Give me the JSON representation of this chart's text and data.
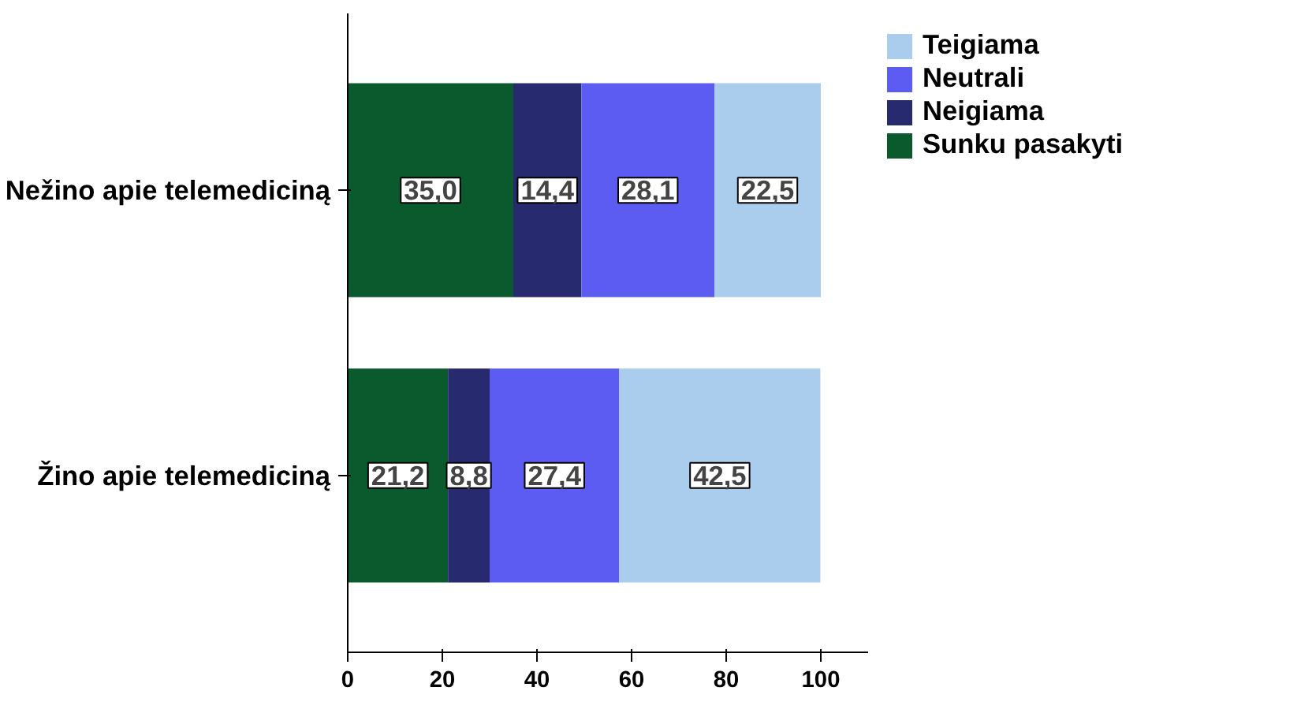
{
  "chart_data": {
    "type": "bar",
    "orientation": "horizontal",
    "stacked": true,
    "categories": [
      "Nežino apie telemediciną",
      "Žino apie telemediciną"
    ],
    "series": [
      {
        "name": "Sunku pasakyti",
        "color": "#0b5a2e",
        "values": [
          35.0,
          21.2
        ],
        "value_labels": [
          "35,0",
          "21,2"
        ]
      },
      {
        "name": "Neigiama",
        "color": "#272a6e",
        "values": [
          14.4,
          8.8
        ],
        "value_labels": [
          "14,4",
          "8,8"
        ]
      },
      {
        "name": "Neutrali",
        "color": "#5c5cf2",
        "values": [
          28.1,
          27.4
        ],
        "value_labels": [
          "28,1",
          "27,4"
        ]
      },
      {
        "name": "Teigiama",
        "color": "#aacdee",
        "values": [
          22.5,
          42.5
        ],
        "value_labels": [
          "22,5",
          "42,5"
        ]
      }
    ],
    "xlim": [
      0,
      110
    ],
    "xticks": [
      0,
      20,
      40,
      60,
      80,
      100
    ],
    "grid": false,
    "legend": "right"
  }
}
